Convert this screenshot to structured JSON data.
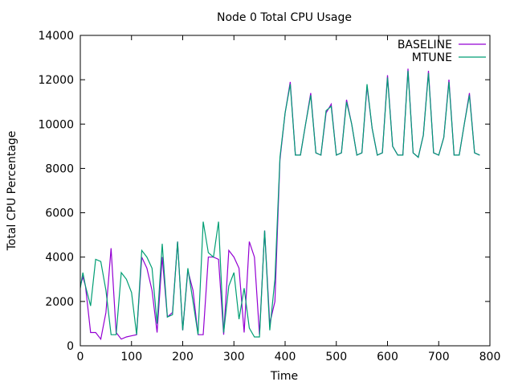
{
  "chart_data": {
    "type": "line",
    "title": "Node 0 Total CPU Usage",
    "xlabel": "Time",
    "ylabel": "Total CPU Percentage",
    "xlim": [
      0,
      800
    ],
    "ylim": [
      0,
      14000
    ],
    "xticks": [
      0,
      100,
      200,
      300,
      400,
      500,
      600,
      700,
      800
    ],
    "yticks": [
      0,
      2000,
      4000,
      6000,
      8000,
      10000,
      12000,
      14000
    ],
    "grid": false,
    "legend_position": "top-right",
    "x": [
      0,
      5,
      10,
      20,
      30,
      40,
      50,
      60,
      70,
      80,
      90,
      100,
      110,
      120,
      130,
      140,
      150,
      160,
      170,
      180,
      190,
      200,
      210,
      220,
      230,
      240,
      250,
      260,
      270,
      280,
      290,
      300,
      310,
      320,
      330,
      340,
      350,
      360,
      370,
      380,
      390,
      400,
      410,
      420,
      430,
      440,
      450,
      460,
      470,
      480,
      490,
      500,
      510,
      520,
      530,
      540,
      550,
      560,
      570,
      580,
      590,
      600,
      610,
      620,
      630,
      640,
      650,
      660,
      670,
      680,
      690,
      700,
      710,
      720,
      730,
      740,
      750,
      760,
      770,
      780
    ],
    "series": [
      {
        "name": "BASELINE",
        "color": "#9400d3",
        "values": [
          2700,
          3100,
          2700,
          600,
          600,
          300,
          1500,
          4400,
          600,
          300,
          400,
          450,
          500,
          4000,
          3500,
          2500,
          600,
          4000,
          1300,
          1500,
          4700,
          700,
          3400,
          2500,
          500,
          500,
          4000,
          4000,
          3900,
          500,
          4300,
          4000,
          3500,
          600,
          4700,
          4000,
          500,
          5200,
          1000,
          2000,
          8400,
          10500,
          11900,
          8600,
          8600,
          10000,
          11400,
          8700,
          8600,
          10500,
          10900,
          8600,
          8700,
          11100,
          10000,
          8600,
          8700,
          11700,
          9800,
          8600,
          8700,
          12200,
          9000,
          8600,
          8600,
          12500,
          8700,
          8500,
          9500,
          12400,
          8700,
          8600,
          9400,
          12000,
          8600,
          8600,
          10000,
          11400,
          8700,
          8600
        ]
      },
      {
        "name": "MTUNE",
        "color": "#009e73",
        "values": [
          2600,
          3300,
          2700,
          1800,
          3900,
          3800,
          2500,
          500,
          500,
          3300,
          3000,
          2400,
          500,
          4300,
          4000,
          3500,
          1000,
          4600,
          1300,
          1400,
          4700,
          700,
          3500,
          2000,
          500,
          5600,
          4200,
          4000,
          5600,
          600,
          2700,
          3300,
          1200,
          2600,
          800,
          400,
          400,
          5200,
          700,
          3000,
          8500,
          10500,
          11800,
          8600,
          8600,
          10000,
          11300,
          8700,
          8600,
          10600,
          10800,
          8600,
          8700,
          11000,
          10000,
          8600,
          8700,
          11800,
          9800,
          8600,
          8700,
          12100,
          9000,
          8600,
          8600,
          12400,
          8700,
          8500,
          9500,
          12300,
          8700,
          8600,
          9400,
          11900,
          8600,
          8600,
          10000,
          11300,
          8700,
          8600
        ]
      }
    ]
  }
}
